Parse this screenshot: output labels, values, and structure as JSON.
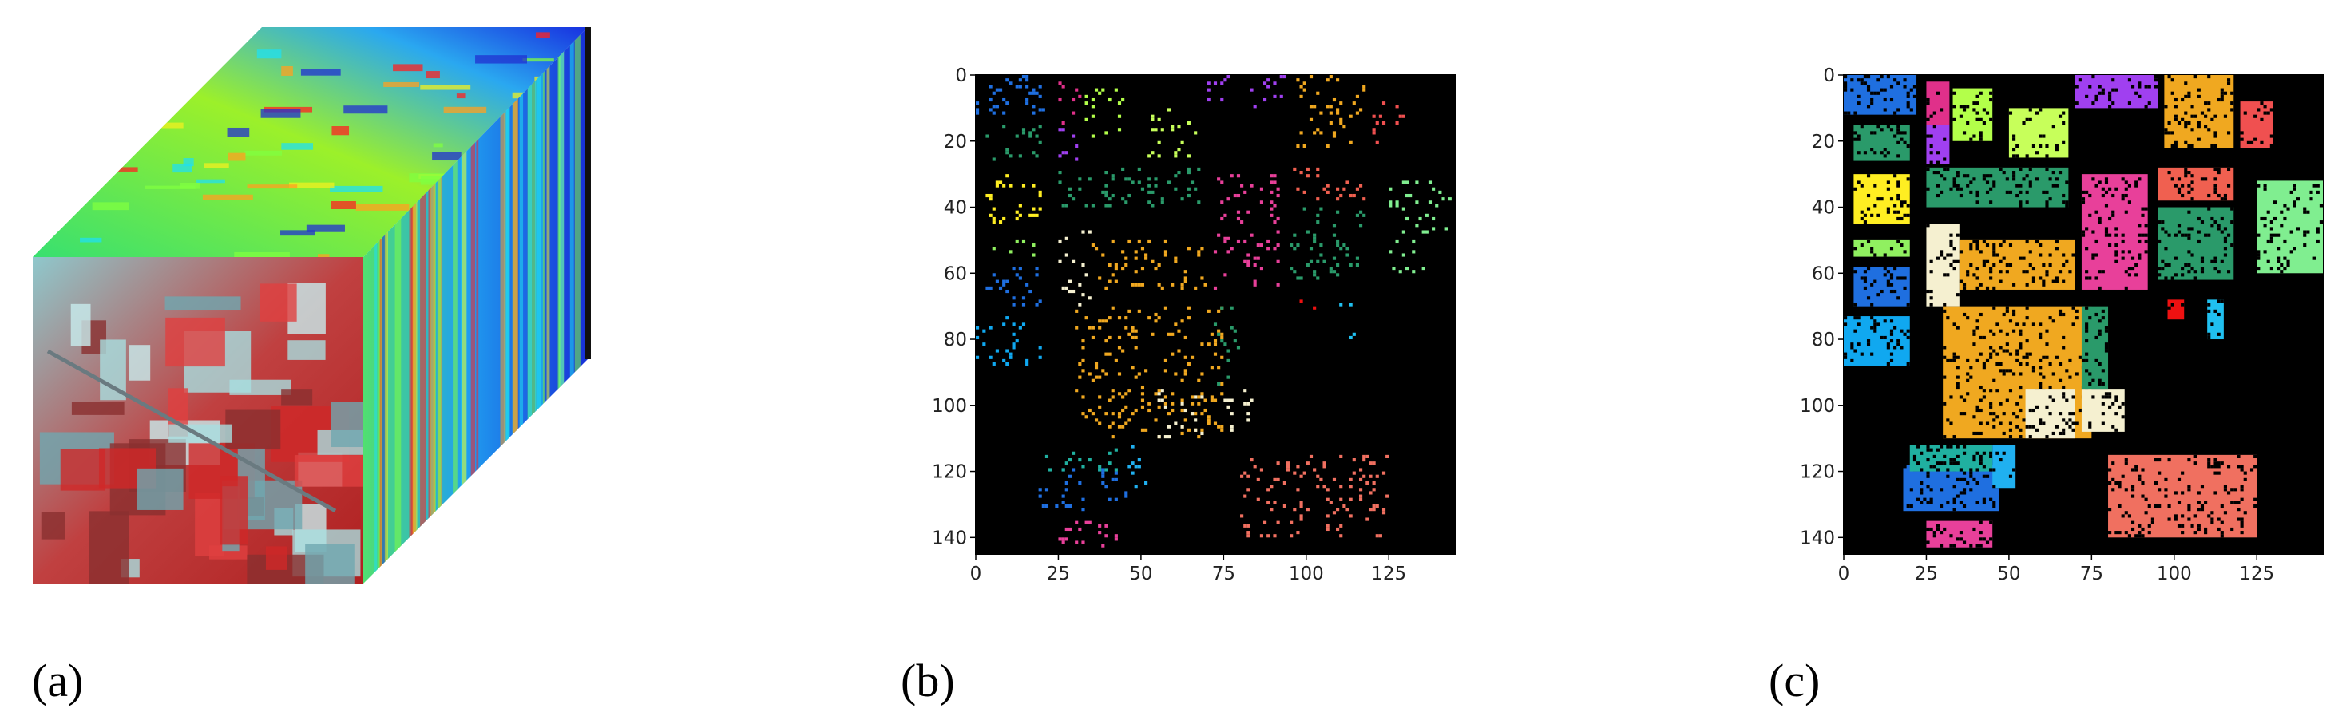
{
  "panels": [
    {
      "label": "(a)"
    },
    {
      "label": "(b)",
      "xlim": [
        0,
        145
      ],
      "ylim": [
        145,
        0
      ],
      "xticks": [
        0,
        25,
        50,
        75,
        100,
        125
      ],
      "yticks": [
        0,
        20,
        40,
        60,
        80,
        100,
        120,
        140
      ]
    },
    {
      "label": "(c)",
      "xlim": [
        0,
        145
      ],
      "ylim": [
        145,
        0
      ],
      "xticks": [
        0,
        25,
        50,
        75,
        100,
        125
      ],
      "yticks": [
        0,
        20,
        40,
        60,
        80,
        100,
        120,
        140
      ]
    }
  ]
}
